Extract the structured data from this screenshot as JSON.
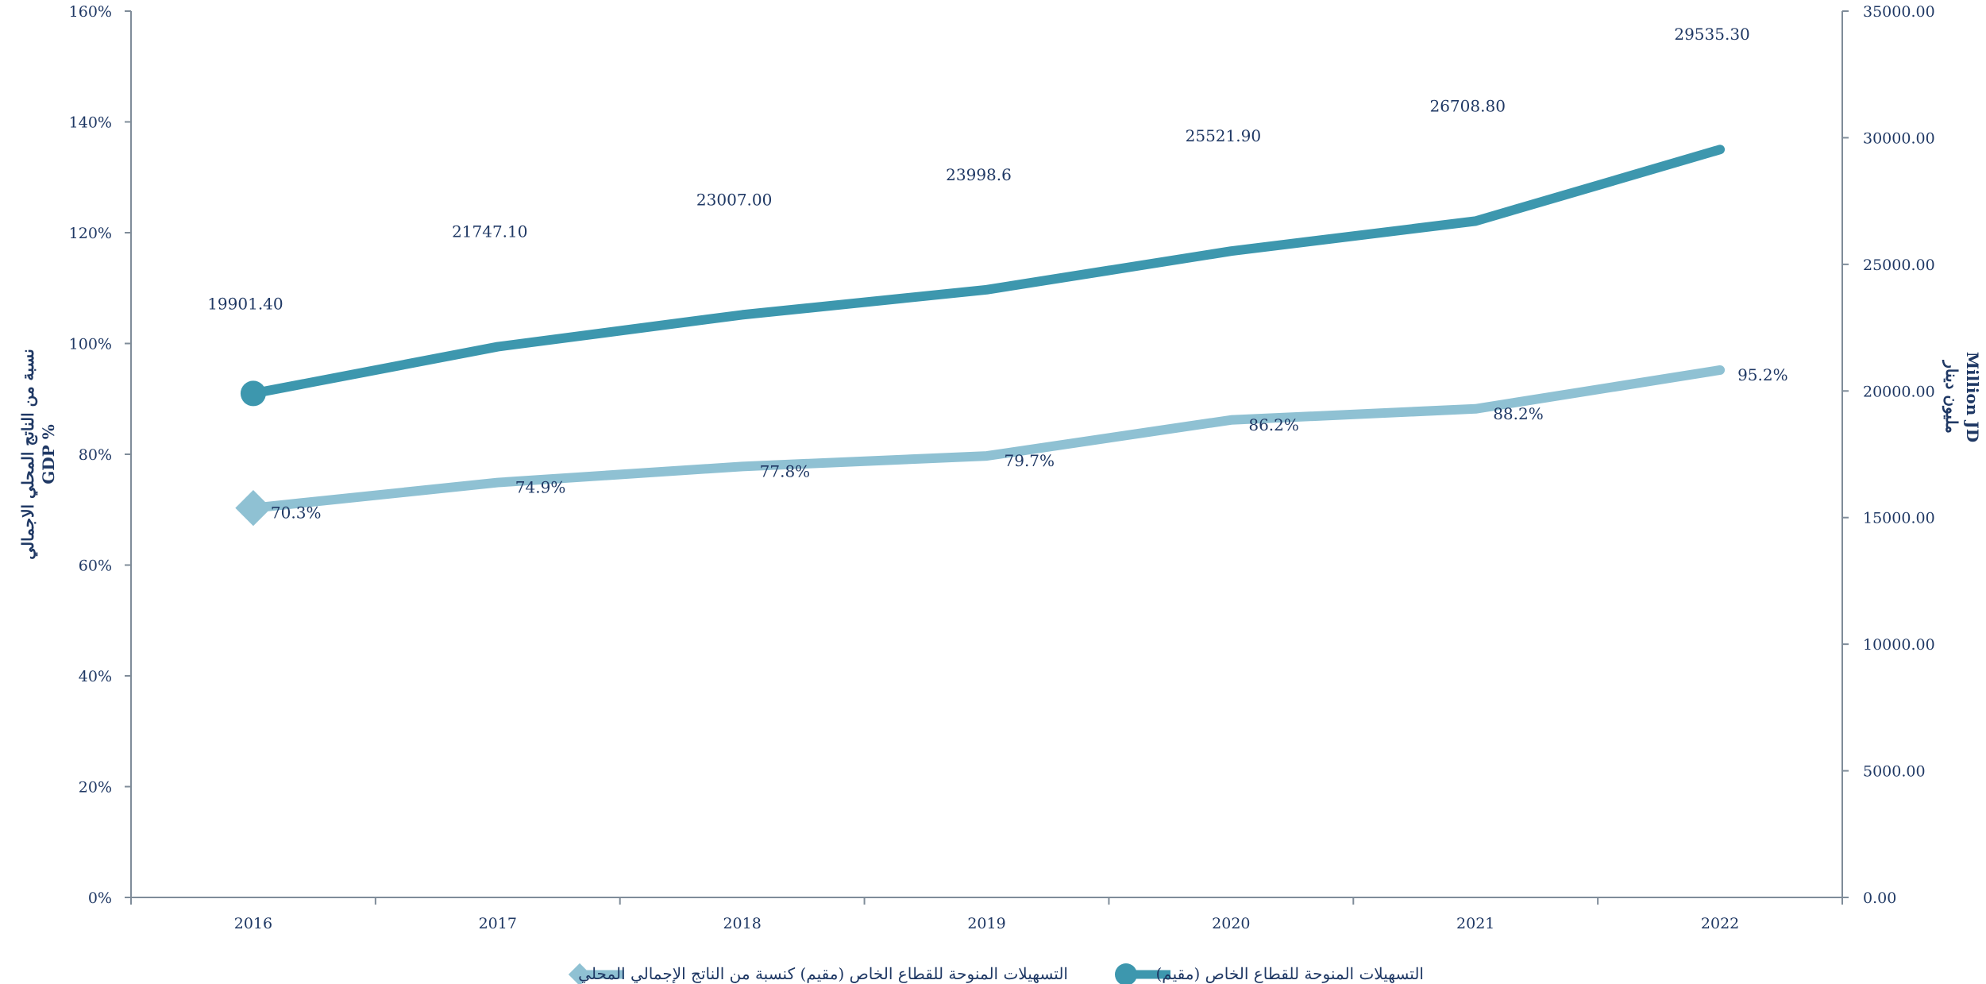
{
  "chart_data": {
    "type": "line",
    "categories": [
      "2016",
      "2017",
      "2018",
      "2019",
      "2020",
      "2021",
      "2022"
    ],
    "y_left": {
      "label_lines": [
        "نسبة من الناتج المحلي الاجمالي",
        "GDP %"
      ],
      "ylim": [
        0,
        160
      ],
      "ticks": [
        0,
        20,
        40,
        60,
        80,
        100,
        120,
        140,
        160
      ],
      "tick_labels": [
        "0%",
        "20%",
        "40%",
        "60%",
        "80%",
        "100%",
        "120%",
        "140%",
        "160%"
      ]
    },
    "y_right": {
      "label_lines": [
        "مليون دينار",
        "Million JD"
      ],
      "ylim": [
        0,
        35000
      ],
      "ticks": [
        0,
        5000,
        10000,
        15000,
        20000,
        25000,
        30000,
        35000
      ],
      "tick_labels": [
        "0.00",
        "5000.00",
        "10000.00",
        "15000.00",
        "20000.00",
        "25000.00",
        "30000.00",
        "35000.00"
      ]
    },
    "series": [
      {
        "name": "التسهيلات المنوحة للقطاع الخاص (مقيم)",
        "axis": "right",
        "color": "#3d97ae",
        "marker": "circle",
        "values": [
          19901.4,
          21747.1,
          23007.0,
          23998.6,
          25521.9,
          26708.8,
          29535.3
        ],
        "labels": [
          "19901.40",
          "21747.10",
          "23007.00",
          "23998.6",
          "25521.90",
          "26708.80",
          "29535.30"
        ]
      },
      {
        "name": "التسهيلات المنوحة للقطاع الخاص (مقيم) كنسبة من الناتج الإجمالي المحلي",
        "axis": "left",
        "color": "#8fc1d3",
        "marker": "diamond",
        "values": [
          70.3,
          74.9,
          77.8,
          79.7,
          86.2,
          88.2,
          95.2
        ],
        "labels": [
          "70.3%",
          "74.9%",
          "77.8%",
          "79.7%",
          "86.2%",
          "88.2%",
          "95.2%"
        ]
      }
    ],
    "legend_position": "bottom",
    "grid": false
  }
}
